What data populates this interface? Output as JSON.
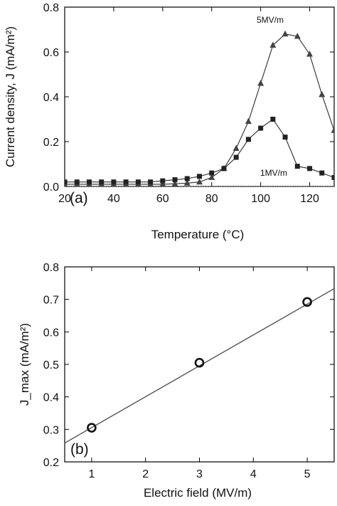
{
  "chart_data": [
    {
      "panel": "(a)",
      "type": "line",
      "xlabel": "Temperature (°C)",
      "ylabel": "Current density, J (mA/m²)",
      "xlim": [
        20,
        130
      ],
      "ylim": [
        0,
        0.8
      ],
      "xticks": [
        "20",
        "40",
        "60",
        "80",
        "100",
        "120"
      ],
      "yticks": [
        "0.0",
        "0.2",
        "0.4",
        "0.6",
        "0.8"
      ],
      "grid": false,
      "annotations": [
        "5MV/m",
        "1MV/m"
      ],
      "baseline": 0.0,
      "series": [
        {
          "name": "5MV/m",
          "marker": "triangle",
          "x": [
            20,
            25,
            30,
            35,
            40,
            45,
            50,
            55,
            60,
            65,
            70,
            75,
            80,
            85,
            90,
            95,
            100,
            105,
            110,
            115,
            120,
            125,
            130
          ],
          "y": [
            0.01,
            0.01,
            0.01,
            0.01,
            0.01,
            0.01,
            0.01,
            0.01,
            0.01,
            0.012,
            0.015,
            0.02,
            0.04,
            0.08,
            0.17,
            0.29,
            0.46,
            0.63,
            0.68,
            0.67,
            0.59,
            0.41,
            0.25
          ]
        },
        {
          "name": "1MV/m",
          "marker": "square",
          "x": [
            20,
            25,
            30,
            35,
            40,
            45,
            50,
            55,
            60,
            65,
            70,
            75,
            80,
            85,
            90,
            95,
            100,
            105,
            110,
            115,
            120,
            125,
            130
          ],
          "y": [
            0.02,
            0.02,
            0.02,
            0.02,
            0.02,
            0.02,
            0.02,
            0.02,
            0.025,
            0.03,
            0.035,
            0.045,
            0.06,
            0.08,
            0.13,
            0.21,
            0.26,
            0.3,
            0.22,
            0.09,
            0.08,
            0.06,
            0.04
          ]
        }
      ]
    },
    {
      "panel": "(b)",
      "type": "scatter",
      "xlabel": "Electric field (MV/m)",
      "ylabel": "J_max (mA/m²)",
      "xlim": [
        0.5,
        5.5
      ],
      "ylim": [
        0.2,
        0.8
      ],
      "xticks": [
        "1",
        "2",
        "3",
        "4",
        "5"
      ],
      "yticks": [
        "0.2",
        "0.3",
        "0.4",
        "0.5",
        "0.6",
        "0.7",
        "0.8"
      ],
      "grid": false,
      "points": {
        "x": [
          1,
          3,
          5
        ],
        "y": [
          0.305,
          0.505,
          0.692
        ]
      },
      "fit_line": {
        "x": [
          0.5,
          5.5
        ],
        "y": [
          0.258,
          0.733
        ]
      }
    }
  ]
}
